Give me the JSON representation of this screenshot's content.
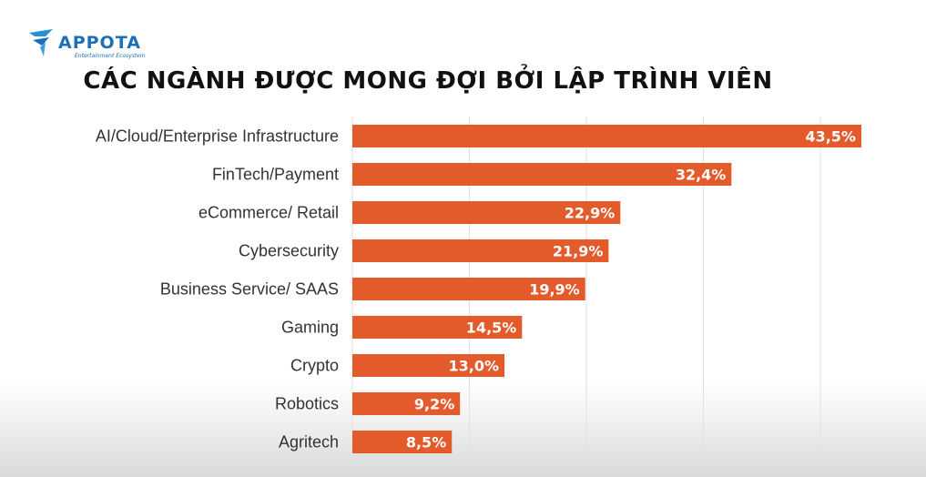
{
  "brand": {
    "logo_text": "APPOTA",
    "tagline": "Entertainment Ecosystem",
    "colors": {
      "logo_blue": "#1d6fb8"
    }
  },
  "chart_data": {
    "type": "bar",
    "orientation": "horizontal",
    "title": "CÁC NGÀNH ĐƯỢC MONG ĐỢI BỞI LẬP TRÌNH VIÊN",
    "categories": [
      "AI/Cloud/Enterprise Infrastructure",
      "FinTech/Payment",
      "eCommerce/ Retail",
      "Cybersecurity",
      "Business Service/ SAAS",
      "Gaming",
      "Crypto",
      "Robotics",
      "Agritech"
    ],
    "values": [
      43.5,
      32.4,
      22.9,
      21.9,
      19.9,
      14.5,
      13.0,
      9.2,
      8.5
    ],
    "value_labels": [
      "43,5%",
      "32,4%",
      "22,9%",
      "21,9%",
      "19,9%",
      "14,5%",
      "13,0%",
      "9,2%",
      "8,5%"
    ],
    "unit": "%",
    "xlim": [
      0,
      45
    ],
    "grid": true,
    "bar_color": "#e35a2b"
  }
}
